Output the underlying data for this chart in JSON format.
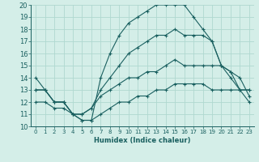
{
  "xlabel": "Humidex (Indice chaleur)",
  "bg_color": "#d4eee8",
  "grid_color": "#b0d8d0",
  "line_color": "#1a6060",
  "xlim": [
    -0.5,
    23.5
  ],
  "ylim": [
    10,
    20
  ],
  "xticks": [
    0,
    1,
    2,
    3,
    4,
    5,
    6,
    7,
    8,
    9,
    10,
    11,
    12,
    13,
    14,
    15,
    16,
    17,
    18,
    19,
    20,
    21,
    22,
    23
  ],
  "yticks": [
    10,
    11,
    12,
    13,
    14,
    15,
    16,
    17,
    18,
    19,
    20
  ],
  "series": [
    {
      "x": [
        0,
        1,
        2,
        3,
        4,
        5,
        6,
        7,
        8,
        9,
        10,
        11,
        12,
        13,
        14,
        15,
        16,
        17,
        18,
        19,
        20,
        21,
        22,
        23
      ],
      "y": [
        14,
        13,
        12,
        12,
        11,
        10.5,
        10.5,
        14,
        16,
        17.5,
        18.5,
        19,
        19.5,
        20,
        20,
        20,
        20,
        19,
        18,
        17,
        15,
        14.5,
        13,
        13
      ],
      "marker": "+"
    },
    {
      "x": [
        0,
        1,
        2,
        3,
        4,
        5,
        6,
        7,
        8,
        9,
        10,
        11,
        12,
        13,
        14,
        15,
        16,
        17,
        18,
        19,
        20,
        21,
        22,
        23
      ],
      "y": [
        13,
        13,
        12,
        12,
        11,
        11,
        11.5,
        13,
        14,
        15,
        16,
        16.5,
        17,
        17.5,
        17.5,
        18,
        17.5,
        17.5,
        17.5,
        17,
        15,
        14,
        13,
        13
      ],
      "marker": "+"
    },
    {
      "x": [
        0,
        1,
        2,
        3,
        4,
        5,
        6,
        7,
        8,
        9,
        10,
        11,
        12,
        13,
        14,
        15,
        16,
        17,
        18,
        19,
        20,
        21,
        22,
        23
      ],
      "y": [
        13,
        13,
        12,
        12,
        11,
        11,
        11.5,
        12.5,
        13,
        13.5,
        14,
        14,
        14.5,
        14.5,
        15,
        15.5,
        15,
        15,
        15,
        15,
        15,
        14.5,
        14,
        12.5
      ],
      "marker": "+"
    },
    {
      "x": [
        0,
        1,
        2,
        3,
        4,
        5,
        6,
        7,
        8,
        9,
        10,
        11,
        12,
        13,
        14,
        15,
        16,
        17,
        18,
        19,
        20,
        21,
        22,
        23
      ],
      "y": [
        12,
        12,
        11.5,
        11.5,
        11,
        10.5,
        10.5,
        11,
        11.5,
        12,
        12,
        12.5,
        12.5,
        13,
        13,
        13.5,
        13.5,
        13.5,
        13.5,
        13,
        13,
        13,
        13,
        12
      ],
      "marker": "+"
    }
  ]
}
